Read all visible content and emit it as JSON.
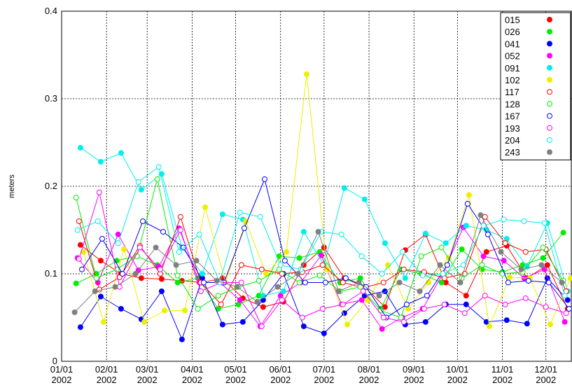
{
  "chart_data": {
    "type": "line",
    "y_label": "meters",
    "xlim": [
      0,
      352
    ],
    "ylim": [
      0,
      0.4
    ],
    "xticks": [
      {
        "value": 0,
        "label": "01/01 2002"
      },
      {
        "value": 31,
        "label": "02/01 2002"
      },
      {
        "value": 59,
        "label": "03/01 2002"
      },
      {
        "value": 90,
        "label": "04/01 2002"
      },
      {
        "value": 120,
        "label": "05/01 2002"
      },
      {
        "value": 151,
        "label": "06/01 2002"
      },
      {
        "value": 181,
        "label": "07/01 2002"
      },
      {
        "value": 212,
        "label": "08/01 2002"
      },
      {
        "value": 243,
        "label": "09/01 2002"
      },
      {
        "value": 273,
        "label": "10/01 2002"
      },
      {
        "value": 304,
        "label": "11/01 2002"
      },
      {
        "value": 334,
        "label": "12/01 2002"
      }
    ],
    "yticks": [
      0,
      0.1,
      0.2,
      0.3,
      0.4
    ],
    "grid": true,
    "legend": "upper right",
    "series": [
      {
        "name": "015",
        "color": "#ff0000",
        "marker": "filled",
        "x": [
          13,
          27,
          41,
          55,
          69,
          83,
          97,
          111,
          125,
          139,
          153,
          167,
          181,
          195,
          209,
          223,
          237,
          251,
          265,
          279,
          293,
          307,
          321,
          335,
          349
        ],
        "values": [
          0.133,
          0.115,
          0.1,
          0.095,
          0.094,
          0.092,
          0.09,
          0.095,
          0.072,
          0.062,
          0.068,
          0.11,
          0.13,
          0.095,
          0.085,
          0.062,
          0.127,
          0.145,
          0.09,
          0.075,
          0.125,
          0.132,
          0.095,
          0.11,
          0.06
        ]
      },
      {
        "name": "026",
        "color": "#00ee00",
        "marker": "filled",
        "x": [
          10,
          24,
          38,
          52,
          66,
          80,
          94,
          108,
          122,
          136,
          150,
          164,
          178,
          192,
          206,
          220,
          234,
          248,
          262,
          276,
          290,
          304,
          318,
          332,
          346
        ],
        "values": [
          0.089,
          0.1,
          0.115,
          0.12,
          0.11,
          0.09,
          0.095,
          0.06,
          0.065,
          0.075,
          0.12,
          0.118,
          0.125,
          0.09,
          0.095,
          0.06,
          0.105,
          0.1,
          0.09,
          0.128,
          0.105,
          0.102,
          0.11,
          0.118,
          0.147
        ]
      },
      {
        "name": "041",
        "color": "#0000ff",
        "marker": "filled",
        "x": [
          13,
          27,
          41,
          55,
          69,
          83,
          97,
          111,
          125,
          139,
          153,
          167,
          181,
          195,
          209,
          223,
          237,
          251,
          265,
          279,
          293,
          307,
          321,
          335,
          349
        ],
        "values": [
          0.039,
          0.074,
          0.06,
          0.048,
          0.08,
          0.025,
          0.095,
          0.042,
          0.045,
          0.07,
          0.1,
          0.04,
          0.032,
          0.055,
          0.075,
          0.08,
          0.042,
          0.045,
          0.065,
          0.065,
          0.045,
          0.047,
          0.043,
          0.095,
          0.07
        ]
      },
      {
        "name": "052",
        "color": "#ff00ff",
        "marker": "filled",
        "x": [
          11,
          25,
          39,
          53,
          67,
          81,
          95,
          109,
          123,
          137,
          151,
          165,
          179,
          193,
          207,
          221,
          235,
          249,
          263,
          277,
          291,
          305,
          319,
          333,
          347
        ],
        "values": [
          0.118,
          0.09,
          0.145,
          0.104,
          0.108,
          0.152,
          0.09,
          0.09,
          0.07,
          0.04,
          0.075,
          0.09,
          0.121,
          0.065,
          0.07,
          0.037,
          0.05,
          0.06,
          0.1,
          0.153,
          0.12,
          0.115,
          0.095,
          0.105,
          0.045
        ]
      },
      {
        "name": "091",
        "color": "#00eeee",
        "marker": "filled",
        "x": [
          13,
          27,
          41,
          55,
          69,
          83,
          97,
          111,
          125,
          139,
          153,
          167,
          181,
          195,
          209,
          223,
          237,
          251,
          265,
          279,
          293,
          307,
          321,
          335,
          349
        ],
        "values": [
          0.244,
          0.228,
          0.238,
          0.196,
          0.214,
          0.13,
          0.1,
          0.168,
          0.162,
          0.075,
          0.08,
          0.148,
          0.11,
          0.198,
          0.185,
          0.135,
          0.095,
          0.146,
          0.135,
          0.155,
          0.15,
          0.14,
          0.108,
          0.158,
          0.08
        ]
      },
      {
        "name": "102",
        "color": "#eeee00",
        "marker": "filled",
        "x": [
          15,
          29,
          43,
          57,
          71,
          85,
          99,
          113,
          127,
          141,
          155,
          169,
          183,
          197,
          211,
          225,
          239,
          253,
          267,
          281,
          295,
          309,
          323,
          337,
          351
        ],
        "values": [
          0.125,
          0.045,
          0.128,
          0.045,
          0.058,
          0.058,
          0.176,
          0.09,
          0.16,
          0.1,
          0.125,
          0.328,
          0.105,
          0.042,
          0.07,
          0.11,
          0.06,
          0.09,
          0.118,
          0.19,
          0.04,
          0.096,
          0.095,
          0.042,
          0.095
        ]
      },
      {
        "name": "117",
        "color": "#ff0000",
        "marker": "open",
        "x": [
          12,
          26,
          40,
          54,
          68,
          82,
          96,
          110,
          124,
          138,
          152,
          166,
          180,
          194,
          208,
          222,
          236,
          250,
          264,
          278,
          292,
          306,
          320,
          334,
          348
        ],
        "values": [
          0.16,
          0.082,
          0.096,
          0.132,
          0.1,
          0.165,
          0.09,
          0.065,
          0.11,
          0.105,
          0.1,
          0.102,
          0.11,
          0.09,
          0.084,
          0.09,
          0.105,
          0.102,
          0.095,
          0.1,
          0.165,
          0.135,
          0.125,
          0.128,
          0.08
        ]
      },
      {
        "name": "128",
        "color": "#00ee00",
        "marker": "open",
        "x": [
          10,
          24,
          38,
          52,
          66,
          80,
          94,
          108,
          122,
          136,
          150,
          164,
          178,
          192,
          206,
          220,
          234,
          248,
          262,
          276,
          290,
          304,
          318,
          332,
          346
        ],
        "values": [
          0.187,
          0.095,
          0.105,
          0.12,
          0.208,
          0.098,
          0.06,
          0.075,
          0.085,
          0.092,
          0.105,
          0.09,
          0.098,
          0.08,
          0.085,
          0.058,
          0.05,
          0.12,
          0.13,
          0.095,
          0.11,
          0.1,
          0.102,
          0.13,
          0.092
        ]
      },
      {
        "name": "167",
        "color": "#0000ff",
        "marker": "open",
        "x": [
          14,
          28,
          42,
          56,
          70,
          84,
          98,
          112,
          126,
          140,
          154,
          168,
          182,
          196,
          210,
          224,
          238,
          252,
          266,
          280,
          294,
          308,
          322,
          336,
          350
        ],
        "values": [
          0.105,
          0.14,
          0.1,
          0.16,
          0.148,
          0.13,
          0.09,
          0.09,
          0.152,
          0.208,
          0.115,
          0.09,
          0.09,
          0.095,
          0.085,
          0.05,
          0.065,
          0.075,
          0.11,
          0.18,
          0.145,
          0.09,
          0.092,
          0.09,
          0.06
        ]
      },
      {
        "name": "193",
        "color": "#ff00ff",
        "marker": "open",
        "x": [
          12,
          26,
          40,
          54,
          68,
          82,
          96,
          110,
          124,
          138,
          152,
          166,
          180,
          194,
          208,
          222,
          236,
          250,
          264,
          278,
          292,
          306,
          320,
          334,
          348
        ],
        "values": [
          0.117,
          0.193,
          0.085,
          0.13,
          0.105,
          0.15,
          0.08,
          0.09,
          0.09,
          0.04,
          0.07,
          0.05,
          0.06,
          0.065,
          0.08,
          0.05,
          0.045,
          0.06,
          0.065,
          0.055,
          0.075,
          0.065,
          0.072,
          0.062,
          0.055
        ]
      },
      {
        "name": "204",
        "color": "#00eeee",
        "marker": "open",
        "x": [
          11,
          25,
          39,
          53,
          67,
          81,
          95,
          109,
          123,
          137,
          151,
          165,
          179,
          193,
          207,
          221,
          235,
          249,
          263,
          277,
          291,
          305,
          319,
          333,
          347
        ],
        "values": [
          0.15,
          0.16,
          0.135,
          0.205,
          0.222,
          0.125,
          0.145,
          0.09,
          0.17,
          0.165,
          0.11,
          0.105,
          0.148,
          0.145,
          0.12,
          0.1,
          0.125,
          0.098,
          0.1,
          0.11,
          0.155,
          0.162,
          0.16,
          0.158,
          0.075
        ]
      },
      {
        "name": "243",
        "color": "#808080",
        "marker": "filled",
        "x": [
          9,
          23,
          37,
          51,
          65,
          79,
          93,
          107,
          121,
          135,
          149,
          163,
          177,
          191,
          205,
          219,
          233,
          247,
          261,
          275,
          289,
          303,
          317,
          331,
          345
        ],
        "values": [
          0.056,
          0.08,
          0.085,
          0.1,
          0.13,
          0.11,
          0.115,
          0.092,
          0.085,
          0.068,
          0.085,
          0.1,
          0.148,
          0.08,
          0.09,
          0.075,
          0.09,
          0.08,
          0.11,
          0.09,
          0.167,
          0.125,
          0.105,
          0.11,
          0.09
        ]
      }
    ]
  }
}
